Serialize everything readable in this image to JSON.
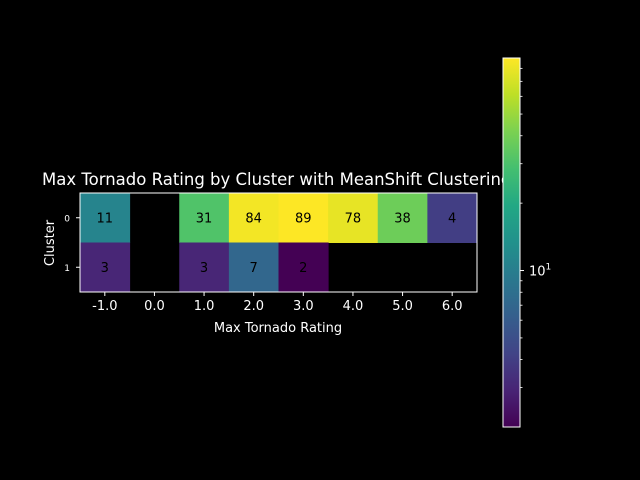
{
  "chart_data": {
    "type": "heatmap",
    "title": "Max Tornado Rating by Cluster with MeanShift Clustering",
    "xlabel": "Max Tornado Rating",
    "ylabel": "Cluster",
    "x_categories": [
      "-1.0",
      "0.0",
      "1.0",
      "2.0",
      "3.0",
      "4.0",
      "5.0",
      "6.0"
    ],
    "y_categories": [
      "0",
      "1"
    ],
    "values": [
      [
        11,
        null,
        31,
        84,
        89,
        78,
        38,
        4
      ],
      [
        3,
        null,
        3,
        7,
        2,
        null,
        null,
        null
      ]
    ],
    "colormap": "viridis",
    "color_scale": "log",
    "color_range": [
      2,
      89
    ],
    "colorbar_tick_label": "10^1",
    "colorbar_tick_value": 10,
    "missing_color": "#000000",
    "annotation_text_color": "#000000",
    "background_color": "#000000",
    "foreground_color": "#ffffff"
  }
}
